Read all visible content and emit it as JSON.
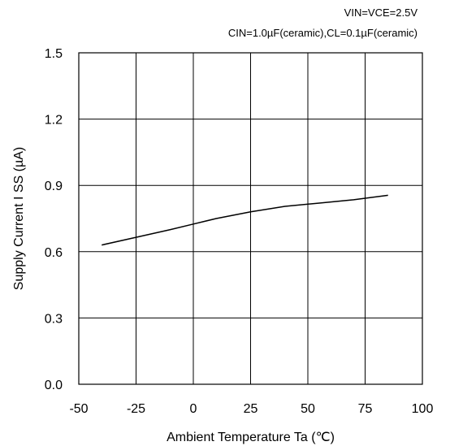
{
  "conditions": [
    "VIN=VCE=2.5V",
    "CIN=1.0µF(ceramic),CL=0.1µF(ceramic)"
  ],
  "chart_data": {
    "type": "line",
    "title": "",
    "xlabel": "Ambient Temperature Ta (℃)",
    "ylabel": "Supply Current  I SS (µA)",
    "xlim": [
      -50,
      100
    ],
    "ylim": [
      0.0,
      1.5
    ],
    "xticks": [
      -50,
      -25,
      0,
      25,
      50,
      75,
      100
    ],
    "xtick_labels": [
      "-50",
      "-25",
      "0",
      "25",
      "50",
      "75",
      "100"
    ],
    "yticks": [
      0.0,
      0.3,
      0.6,
      0.9,
      1.2,
      1.5
    ],
    "ytick_labels": [
      "0.0",
      "0.3",
      "0.6",
      "0.9",
      "1.2",
      "1.5"
    ],
    "grid": true,
    "series": [
      {
        "x": [
          -40,
          -25,
          -10,
          0,
          10,
          25,
          40,
          55,
          70,
          85
        ],
        "values": [
          0.63,
          0.665,
          0.7,
          0.725,
          0.75,
          0.78,
          0.805,
          0.82,
          0.835,
          0.855
        ]
      }
    ]
  }
}
